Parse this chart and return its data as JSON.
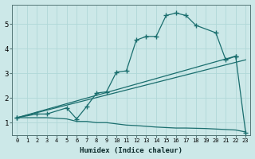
{
  "xlabel": "Humidex (Indice chaleur)",
  "background_color": "#cce8e8",
  "grid_color": "#b0d8d8",
  "line_color": "#1a6e6e",
  "xlim": [
    -0.5,
    23.5
  ],
  "ylim": [
    0.5,
    5.8
  ],
  "xticks": [
    0,
    1,
    2,
    3,
    4,
    5,
    6,
    7,
    8,
    9,
    10,
    11,
    12,
    13,
    14,
    15,
    16,
    17,
    18,
    19,
    20,
    21,
    22,
    23
  ],
  "yticks": [
    1,
    2,
    3,
    4,
    5
  ],
  "series": [
    {
      "x": [
        0,
        2,
        3,
        5,
        6,
        7,
        8,
        9,
        10,
        11,
        12,
        13,
        14,
        15,
        16,
        17,
        18,
        20,
        21,
        22
      ],
      "y": [
        1.2,
        1.35,
        1.35,
        1.6,
        1.15,
        1.65,
        2.2,
        2.25,
        3.05,
        3.1,
        4.35,
        4.5,
        4.5,
        5.35,
        5.45,
        5.35,
        4.95,
        4.65,
        3.55,
        3.7
      ],
      "style": "line_marker"
    },
    {
      "x": [
        0,
        22,
        23
      ],
      "y": [
        1.2,
        3.7,
        0.6
      ],
      "style": "line_marker"
    },
    {
      "x": [
        0,
        23
      ],
      "y": [
        1.2,
        3.55
      ],
      "style": "line_only"
    },
    {
      "x": [
        0,
        3,
        5,
        6,
        7,
        8,
        9,
        10,
        11,
        12,
        13,
        14,
        15,
        16,
        17,
        18,
        19,
        20,
        21,
        22,
        23
      ],
      "y": [
        1.2,
        1.2,
        1.15,
        1.05,
        1.05,
        1.0,
        1.0,
        0.95,
        0.9,
        0.88,
        0.85,
        0.82,
        0.8,
        0.78,
        0.78,
        0.77,
        0.76,
        0.74,
        0.72,
        0.7,
        0.62
      ],
      "style": "line_only"
    }
  ]
}
